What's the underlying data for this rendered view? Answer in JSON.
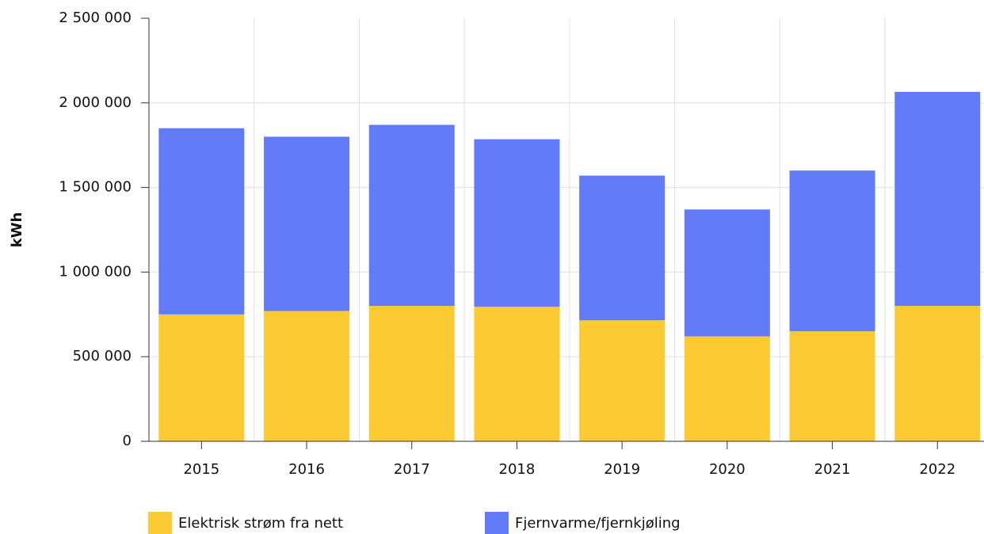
{
  "chart_data": {
    "type": "stacked_bar",
    "categories": [
      "2015",
      "2016",
      "2017",
      "2018",
      "2019",
      "2020",
      "2021",
      "2022"
    ],
    "series": [
      {
        "name": "Elektrisk strøm fra nett",
        "color": "#fcca33",
        "values": [
          750000,
          770000,
          800000,
          795000,
          715000,
          620000,
          650000,
          800000
        ]
      },
      {
        "name": "Fjernvarme/fjernkjøling",
        "color": "#637bf7",
        "values": [
          1100000,
          1030000,
          1070000,
          990000,
          855000,
          750000,
          950000,
          1265000
        ]
      }
    ],
    "ylabel": "kWh",
    "ylim": [
      0,
      2500000
    ],
    "yticks": [
      0,
      {
        "value": 500000,
        "label": "500 000"
      },
      {
        "value": 1000000,
        "label": "1 000 000"
      },
      {
        "value": 1500000,
        "label": "1 500 000"
      },
      {
        "value": 2000000,
        "label": "2 000 000"
      },
      {
        "value": 2500000,
        "label": "2 500 000"
      }
    ],
    "grid": true,
    "legend": "bottom"
  }
}
